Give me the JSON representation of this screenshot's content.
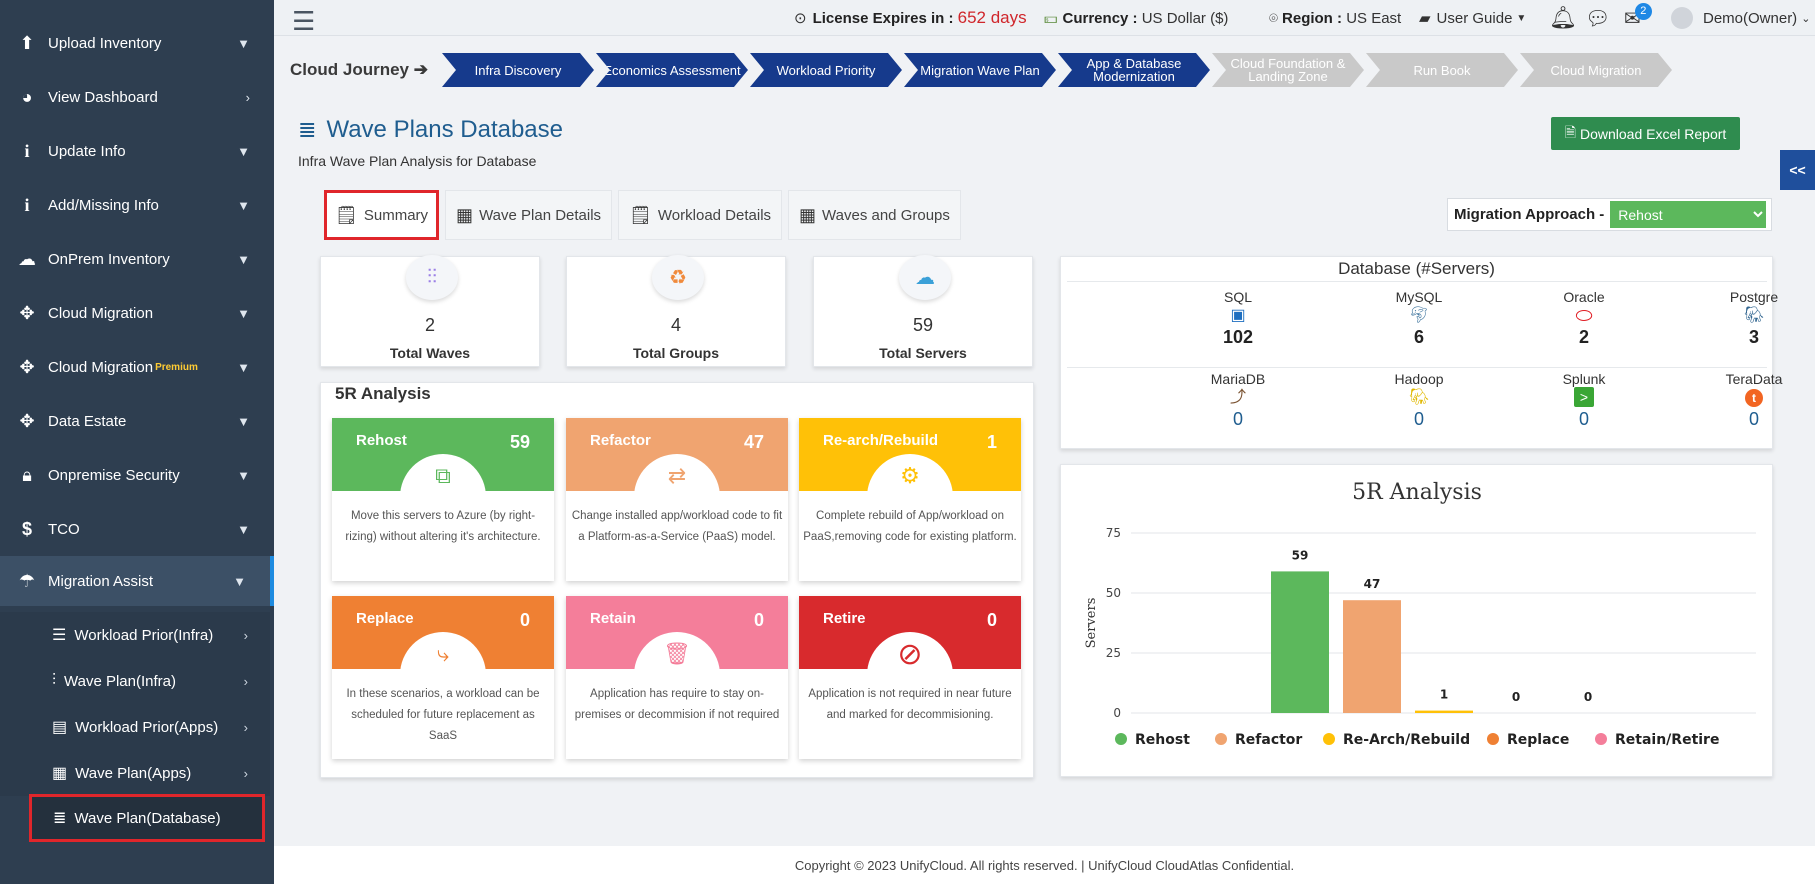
{
  "sidebar": {
    "items": [
      {
        "label": "Upload Inventory",
        "icon": "upload-icon"
      },
      {
        "label": "View Dashboard",
        "icon": "dashboard-icon"
      },
      {
        "label": "Update Info",
        "icon": "info-icon"
      },
      {
        "label": "Add/Missing Info",
        "icon": "info-icon"
      },
      {
        "label": "OnPrem Inventory",
        "icon": "cloud-icon"
      },
      {
        "label": "Cloud Migration",
        "icon": "move-icon"
      },
      {
        "label": "Cloud Migration",
        "premium": "Premium",
        "icon": "move-icon"
      },
      {
        "label": "Data Estate",
        "icon": "move-icon"
      },
      {
        "label": "Onpremise Security",
        "icon": "lock-icon"
      },
      {
        "label": "TCO",
        "icon": "dollar-icon"
      },
      {
        "label": "Migration Assist",
        "icon": "umbrella-icon"
      }
    ],
    "sub_items": [
      {
        "label": "Workload Prior(Infra)"
      },
      {
        "label": "Wave Plan(Infra)"
      },
      {
        "label": "Workload Prior(Apps)"
      },
      {
        "label": "Wave Plan(Apps)"
      },
      {
        "label": "Wave Plan(Database)"
      }
    ]
  },
  "topbar": {
    "license_label": "License Expires in :",
    "license_days": "652 days",
    "currency_label": "Currency :",
    "currency_value": "US Dollar ($)",
    "region_label": "Region :",
    "region_value": "US East",
    "user_guide": "User Guide",
    "notification_count": "2",
    "user": "Demo(Owner)"
  },
  "journey": {
    "title": "Cloud Journey",
    "steps": [
      {
        "label": "Infra Discovery",
        "active": true
      },
      {
        "label": "Economics Assessment",
        "active": true
      },
      {
        "label": "Workload Priority",
        "active": true
      },
      {
        "label": "Migration Wave Plan",
        "active": true
      },
      {
        "label": "App & Database Modernization",
        "active": true
      },
      {
        "label": "Cloud Foundation & Landing Zone",
        "active": false
      },
      {
        "label": "Run Book",
        "active": false
      },
      {
        "label": "Cloud Migration",
        "active": false
      }
    ]
  },
  "page": {
    "title": "Wave Plans Database",
    "subtitle": "Infra Wave Plan Analysis for Database",
    "download_button": "Download Excel Report",
    "collapse": "<<"
  },
  "tabs": [
    {
      "label": "Summary"
    },
    {
      "label": "Wave Plan Details"
    },
    {
      "label": "Workload Details"
    },
    {
      "label": "Waves and Groups"
    }
  ],
  "approach": {
    "label": "Migration Approach -",
    "selected": "Rehost"
  },
  "stats": [
    {
      "value": "2",
      "label": "Total Waves"
    },
    {
      "value": "4",
      "label": "Total Groups"
    },
    {
      "value": "59",
      "label": "Total Servers"
    }
  ],
  "fr_analysis": {
    "title": "5R Analysis",
    "cards": [
      {
        "name": "Rehost",
        "count": "59",
        "color": "#5cb85c",
        "desc": "Move this servers to Azure (by right-rizing) without altering it's architecture."
      },
      {
        "name": "Refactor",
        "count": "47",
        "color": "#f0a470",
        "desc": "Change installed app/workload code to fit a Platform-as-a-Service (PaaS) model."
      },
      {
        "name": "Re-arch/Rebuild",
        "count": "1",
        "color": "#ffc107",
        "desc": "Complete rebuild of App/workload on PaaS,removing code for existing platform."
      },
      {
        "name": "Replace",
        "count": "0",
        "color": "#ef8033",
        "desc": "In these scenarios, a workload can be scheduled for future replacement as SaaS"
      },
      {
        "name": "Retain",
        "count": "0",
        "color": "#f47e9a",
        "desc": "Application has require to stay on-premises or decommision if not required"
      },
      {
        "name": "Retire",
        "count": "0",
        "color": "#d82a2d",
        "desc": "Application is not required in near future and marked for decommisioning."
      }
    ]
  },
  "database": {
    "title": "Database (#Servers)",
    "items": [
      {
        "name": "SQL",
        "value": "102",
        "icon": "sql-icon"
      },
      {
        "name": "MySQL",
        "value": "6",
        "icon": "mysql-icon"
      },
      {
        "name": "Oracle",
        "value": "2",
        "icon": "oracle-icon"
      },
      {
        "name": "Postgre",
        "value": "3",
        "icon": "postgres-icon"
      },
      {
        "name": "MariaDB",
        "value": "0",
        "icon": "mariadb-icon"
      },
      {
        "name": "Hadoop",
        "value": "0",
        "icon": "hadoop-icon"
      },
      {
        "name": "Splunk",
        "value": "0",
        "icon": "splunk-icon"
      },
      {
        "name": "TeraData",
        "value": "0",
        "icon": "teradata-icon"
      }
    ]
  },
  "chart_data": {
    "type": "bar",
    "title": "5R Analysis",
    "ylabel": "Servers",
    "xlabel": "",
    "ylim": [
      0,
      75
    ],
    "yticks": [
      0,
      25,
      50,
      75
    ],
    "categories": [
      "Rehost",
      "Refactor",
      "Re-Arch/Rebuild",
      "Replace",
      "Retain/Retire"
    ],
    "values": [
      59,
      47,
      1,
      0,
      0
    ],
    "colors": [
      "#5cb85c",
      "#f0a470",
      "#ffc107",
      "#ef8033",
      "#f47e9a"
    ],
    "legend_position": "bottom",
    "grid": true
  },
  "footer": "Copyright © 2023 UnifyCloud. All rights reserved.   |  UnifyCloud CloudAtlas Confidential."
}
